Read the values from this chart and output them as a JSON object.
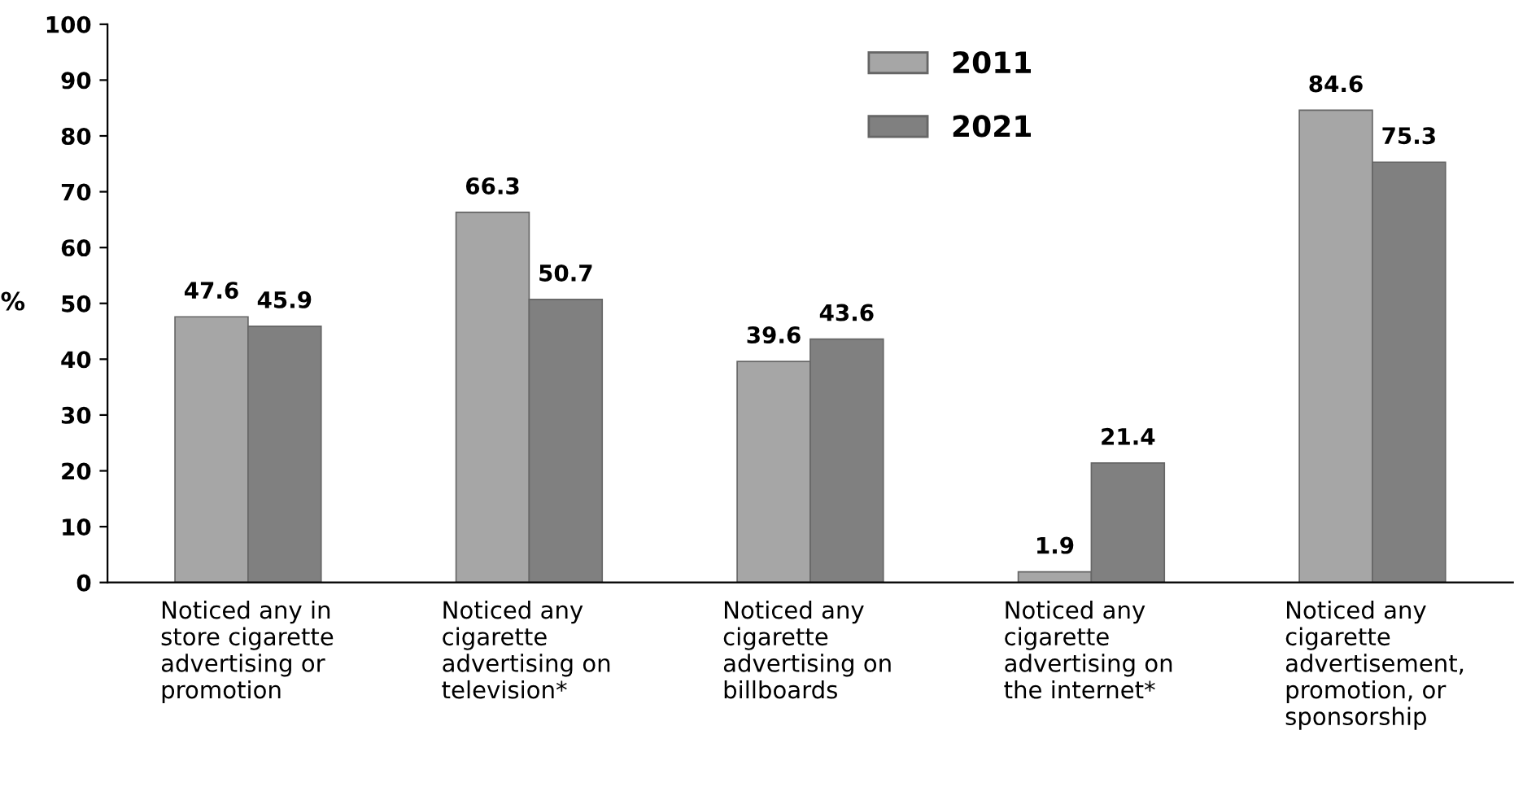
{
  "chart_data": {
    "type": "bar",
    "ylabel": "%",
    "categories": [
      "Noticed any in\nstore cigarette\nadvertising or\npromotion",
      "Noticed any\ncigarette\nadvertising on\ntelevision*",
      "Noticed any\ncigarette\nadvertising on\nbillboards",
      "Noticed any\ncigarette\nadvertising on\nthe internet*",
      "Noticed any\ncigarette\nadvertisement,\npromotion, or\nsponsorship"
    ],
    "series": [
      {
        "name": "2011",
        "color": "#a6a6a6",
        "values": [
          47.6,
          66.3,
          39.6,
          1.9,
          84.6
        ]
      },
      {
        "name": "2021",
        "color": "#808080",
        "values": [
          45.9,
          50.7,
          43.6,
          21.4,
          75.3
        ]
      }
    ],
    "ylim": [
      0,
      100
    ],
    "yticks": [
      0,
      10,
      20,
      30,
      40,
      50,
      60,
      70,
      80,
      90,
      100
    ],
    "grid": false,
    "legend": "top",
    "data_labels": true
  }
}
